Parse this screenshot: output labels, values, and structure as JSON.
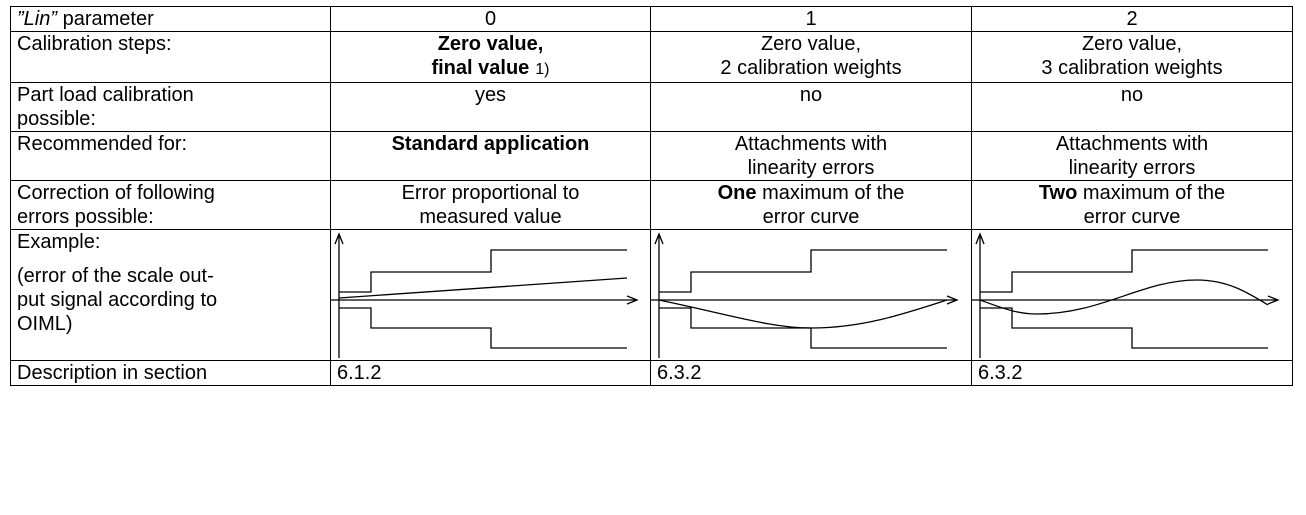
{
  "table": {
    "header": {
      "label_italic": "”Lin”",
      "label": "parameter",
      "columns": [
        "0",
        "1",
        "2"
      ]
    },
    "rows": [
      {
        "label": [
          "Calibration steps:"
        ],
        "cells": [
          {
            "bold": [
              "Zero value,",
              "final value"
            ],
            "footnote": "1)"
          },
          [
            "Zero value,",
            "2 calibration weights"
          ],
          [
            "Zero value,",
            "3 calibration weights"
          ]
        ]
      },
      {
        "label": [
          "Part load calibration",
          "possible:"
        ],
        "cells": [
          "yes",
          "no",
          "no"
        ]
      },
      {
        "label": [
          "Recommended for:"
        ],
        "cells": [
          {
            "bold": "Standard application"
          },
          [
            "Attachments with",
            "linearity errors"
          ],
          [
            "Attachments with",
            "linearity errors"
          ]
        ]
      },
      {
        "label": [
          "Correction of following",
          "errors possible:"
        ],
        "cells": [
          [
            "Error proportional to",
            "measured value"
          ],
          {
            "bold": "One",
            "lines": [
              "maximum of the",
              "error curve"
            ]
          },
          {
            "bold": "Two",
            "lines": [
              "maximum of the",
              "error curve"
            ]
          }
        ]
      },
      {
        "label": [
          "Example:",
          "(error of the scale out-",
          "put signal according to",
          "OIML)"
        ]
      },
      {
        "label": [
          "Description in section"
        ],
        "cells": [
          "6.1.2",
          "6.3.2",
          "6.3.2"
        ]
      }
    ]
  }
}
